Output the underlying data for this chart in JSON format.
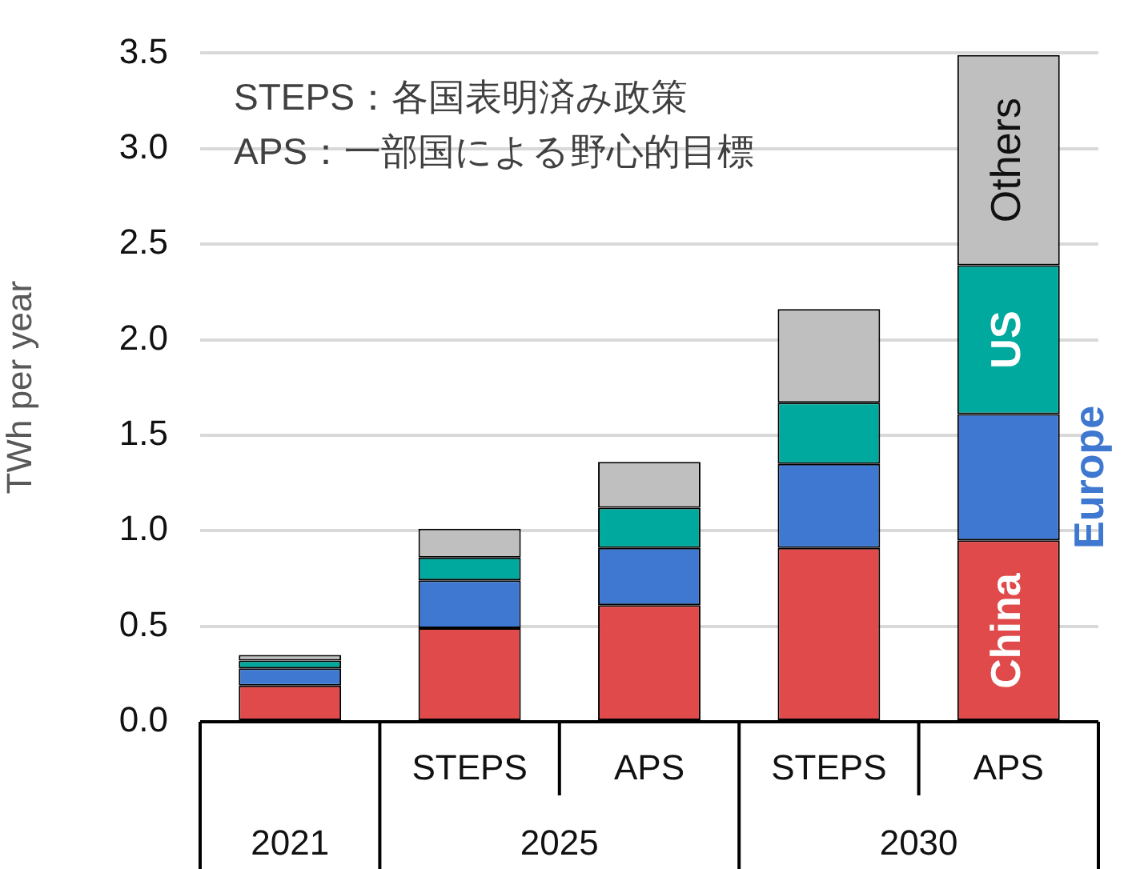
{
  "chart_data": {
    "type": "bar",
    "stacked": true,
    "ylabel": "TWh per year",
    "categories": [
      null,
      "STEPS",
      "APS",
      "STEPS",
      "APS"
    ],
    "series": [
      {
        "name": "China",
        "color": "#e04a4a",
        "values": [
          0.19,
          0.49,
          0.61,
          0.91,
          0.95
        ]
      },
      {
        "name": "Europe",
        "color": "#3f78d0",
        "values": [
          0.09,
          0.25,
          0.3,
          0.44,
          0.66
        ]
      },
      {
        "name": "US",
        "color": "#00a99d",
        "values": [
          0.04,
          0.12,
          0.21,
          0.32,
          0.78
        ]
      },
      {
        "name": "Others",
        "color": "#bfbfbf",
        "values": [
          0.03,
          0.15,
          0.24,
          0.49,
          1.1
        ]
      }
    ],
    "ylim": [
      0,
      3.5
    ],
    "yticks": [
      {
        "value": 0,
        "label": "0.0"
      },
      0.5,
      {
        "value": 1,
        "label": "1.0"
      },
      1.5,
      {
        "value": 2,
        "label": "2.0"
      },
      2.5,
      {
        "value": 3,
        "label": "3.0"
      },
      3.5
    ],
    "grid": "y",
    "legend": false,
    "annotations": [
      "STEPS：各国表明済み政策",
      "APS：一部国による野心的目標",
      "2021",
      "2025",
      "2030"
    ]
  }
}
